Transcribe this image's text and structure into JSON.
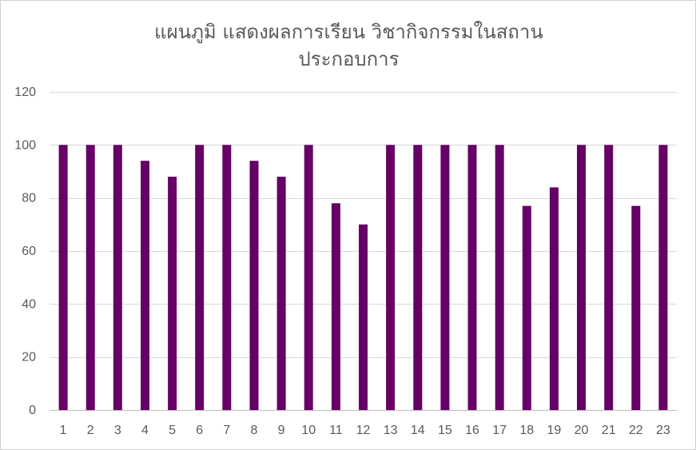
{
  "chart_data": {
    "type": "bar",
    "title_line1": "แผนภูมิ แสดงผลการเรียน วิชากิจกรรมในสถาน",
    "title_line2": "ประกอบการ",
    "categories": [
      "1",
      "2",
      "3",
      "4",
      "5",
      "6",
      "7",
      "8",
      "9",
      "10",
      "11",
      "12",
      "13",
      "14",
      "15",
      "16",
      "17",
      "18",
      "19",
      "20",
      "21",
      "22",
      "23"
    ],
    "values": [
      100,
      100,
      100,
      94,
      88,
      100,
      100,
      94,
      88,
      100,
      78,
      70,
      100,
      100,
      100,
      100,
      100,
      77,
      84,
      100,
      100,
      77,
      100
    ],
    "ylim": [
      0,
      120
    ],
    "yticks": [
      0,
      20,
      40,
      60,
      80,
      100,
      120
    ],
    "grid": true,
    "legend": "none",
    "bar_color": "#660066",
    "xlabel": "",
    "ylabel": ""
  }
}
